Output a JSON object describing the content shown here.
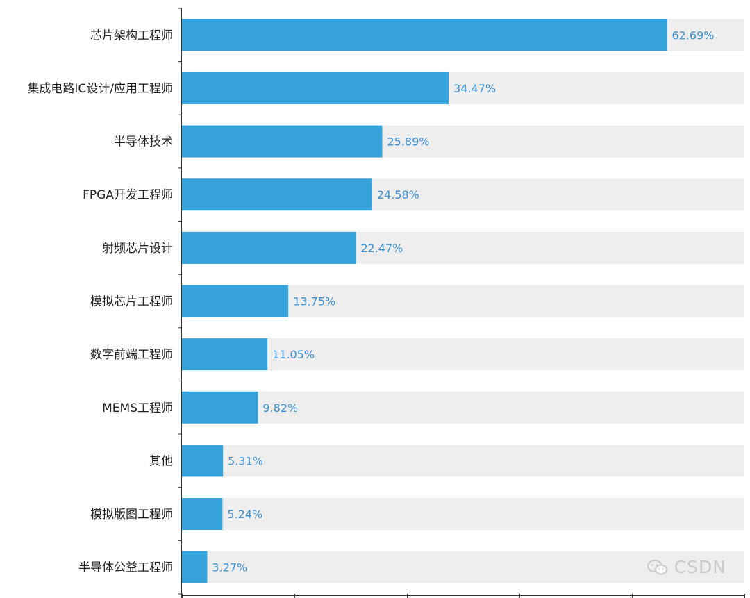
{
  "chart_data": {
    "type": "bar",
    "orientation": "horizontal",
    "categories": [
      "芯片架构工程师",
      "集成电路IC设计/应用工程师",
      "半导体技术",
      "FPGA开发工程师",
      "射频芯片设计",
      "模拟芯片工程师",
      "数字前端工程师",
      "MEMS工程师",
      "其他",
      "模拟版图工程师",
      "半导体公益工程师"
    ],
    "values": [
      62.69,
      34.47,
      25.89,
      24.58,
      22.47,
      13.75,
      11.05,
      9.82,
      5.31,
      5.24,
      3.27
    ],
    "value_labels": [
      "62.69%",
      "34.47%",
      "25.89%",
      "24.58%",
      "22.47%",
      "13.75%",
      "11.05%",
      "9.82%",
      "5.31%",
      "5.24%",
      "3.27%"
    ],
    "xlim": [
      0,
      72.7
    ],
    "x_ticks": [
      0,
      14.54,
      29.08,
      43.62,
      58.16,
      72.7
    ],
    "background_track": true,
    "grid": false,
    "title": "",
    "xlabel": "",
    "ylabel": ""
  },
  "colors": {
    "bar": "#35a2dc",
    "track": "#eeeeee",
    "value_label": "#3a8fd0",
    "axis": "#333333",
    "category_label": "#222222"
  },
  "watermark": {
    "text": "CSDN",
    "icon": "wechat-icon"
  }
}
